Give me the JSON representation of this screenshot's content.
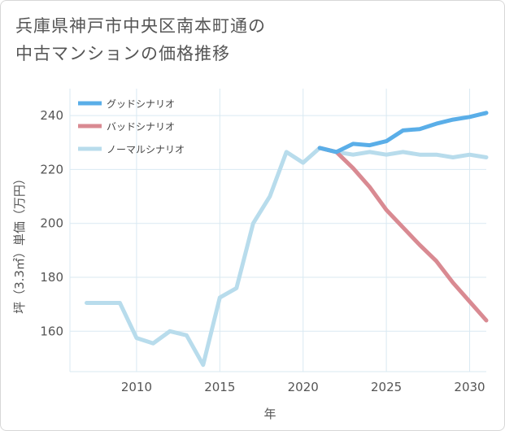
{
  "title": {
    "line1": "兵庫県神戸市中央区南本町通の",
    "line2": "中古マンションの価格推移"
  },
  "chart_data": {
    "type": "line",
    "xlabel": "年",
    "ylabel": "坪（3.3㎡）単価（万円）",
    "xlim": [
      2006,
      2031
    ],
    "ylim": [
      145,
      250
    ],
    "x_ticks": [
      2010,
      2015,
      2020,
      2025,
      2030
    ],
    "y_ticks": [
      160,
      180,
      200,
      220,
      240
    ],
    "legend_position": "top-left",
    "series": [
      {
        "name": "グッドシナリオ",
        "color": "#5aaee8",
        "x": [
          2021,
          2022,
          2023,
          2024,
          2025,
          2026,
          2027,
          2028,
          2029,
          2030,
          2031
        ],
        "values": [
          228,
          226.5,
          229.5,
          229,
          230.5,
          234.5,
          235,
          237,
          238.5,
          239.5,
          241
        ]
      },
      {
        "name": "バッドシナリオ",
        "color": "#d98a92",
        "x": [
          2021,
          2022,
          2023,
          2024,
          2025,
          2026,
          2027,
          2028,
          2029,
          2030,
          2031
        ],
        "values": [
          228,
          226.5,
          220.5,
          213.5,
          205,
          198.5,
          192,
          186,
          178,
          171,
          164
        ]
      },
      {
        "name": "ノーマルシナリオ",
        "color": "#b8dcec",
        "x": [
          2007,
          2008,
          2009,
          2010,
          2011,
          2012,
          2013,
          2014,
          2015,
          2016,
          2017,
          2018,
          2019,
          2020,
          2021,
          2022,
          2023,
          2024,
          2025,
          2026,
          2027,
          2028,
          2029,
          2030,
          2031
        ],
        "values": [
          170.5,
          170.5,
          170.5,
          157.5,
          155.5,
          160,
          158.5,
          147.5,
          172.5,
          176,
          200,
          210,
          226.5,
          222.5,
          228,
          226.5,
          225.5,
          226.5,
          225.5,
          226.5,
          225.5,
          225.5,
          224.5,
          225.5,
          224.5
        ]
      }
    ]
  }
}
